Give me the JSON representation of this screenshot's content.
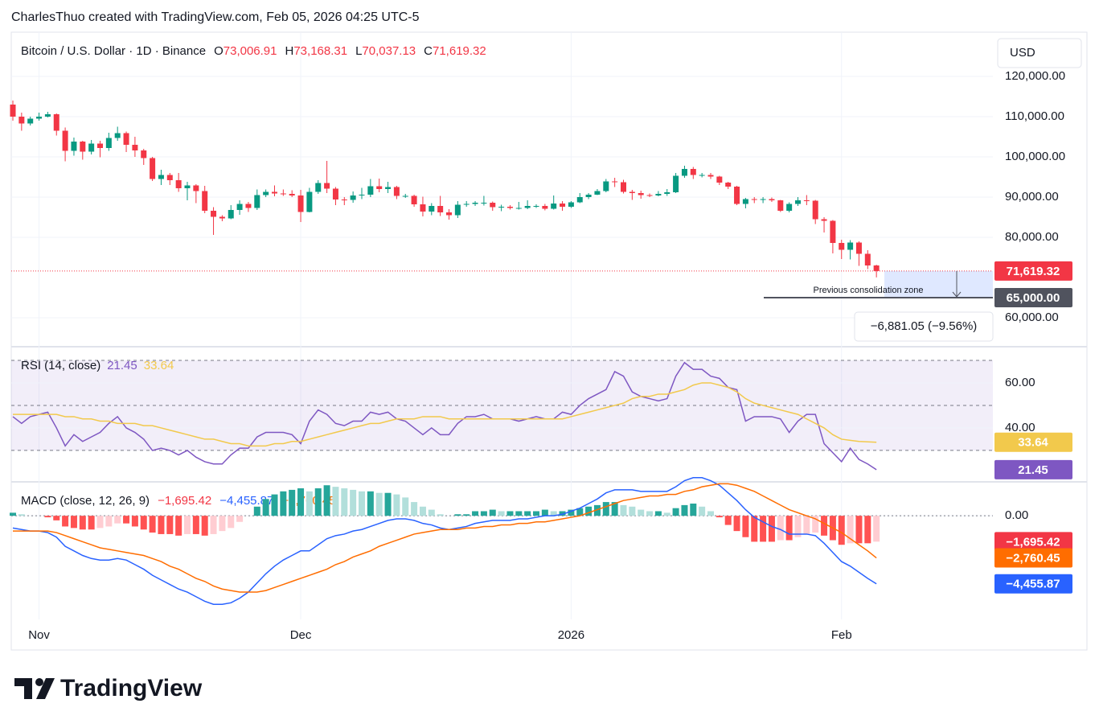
{
  "header": {
    "attribution": "CharlesThuo created with TradingView.com, Feb 05, 2026 04:25 UTC-5"
  },
  "currency_button": "USD",
  "footer": {
    "logo": "TradingView"
  },
  "chart_data": [
    {
      "type": "candlestick",
      "title": "Bitcoin / U.S. Dollar · 1D · Binance",
      "legend": [
        {
          "key": "O",
          "value": "73,006.91"
        },
        {
          "key": "H",
          "value": "73,168.31"
        },
        {
          "key": "L",
          "value": "70,037.13"
        },
        {
          "key": "C",
          "value": "71,619.32"
        }
      ],
      "up_color": "#089981",
      "down_color": "#f23645",
      "open": [
        113000,
        110000,
        108300,
        109500,
        110000,
        110600,
        106500,
        101500,
        103800,
        101300,
        103300,
        102200,
        104700,
        105900,
        103000,
        101600,
        99700,
        94500,
        95500,
        94200,
        92200,
        92900,
        91500,
        86600,
        85100,
        84700,
        86800,
        88300,
        87300,
        90500,
        91300,
        90900,
        90800,
        90400,
        86300,
        91300,
        93500,
        92100,
        89400,
        89300,
        90400,
        90600,
        92700,
        92000,
        92500,
        90300,
        90300,
        88200,
        86400,
        87800,
        86200,
        85500,
        88100,
        88300,
        88600,
        88600,
        87500,
        87600,
        87300,
        87300,
        87800,
        87800,
        87100,
        88400,
        87600,
        88700,
        90000,
        90600,
        91500,
        93900,
        93700,
        91300,
        91000,
        90500,
        90400,
        90800,
        91200,
        95300,
        97000,
        95500,
        95500,
        95100,
        93600,
        92600,
        88300,
        89500,
        89400,
        89500,
        89200,
        86600,
        88300,
        89200,
        89100,
        84500,
        84100,
        78600,
        76900,
        78700,
        75900,
        73006.91
      ],
      "high": [
        114000,
        111000,
        110000,
        111000,
        111200,
        110800,
        107300,
        104800,
        104000,
        104200,
        104000,
        106000,
        107500,
        106300,
        105000,
        102000,
        100000,
        96800,
        96000,
        96000,
        93800,
        93200,
        92800,
        87500,
        85500,
        88000,
        89200,
        88800,
        91900,
        91900,
        92900,
        91900,
        91700,
        91800,
        92300,
        94200,
        99000,
        92500,
        90000,
        91400,
        92300,
        94500,
        94600,
        93800,
        92800,
        90800,
        90600,
        90100,
        88500,
        90300,
        87000,
        89000,
        89000,
        89000,
        90300,
        88900,
        88100,
        88000,
        88800,
        89200,
        88200,
        88300,
        90400,
        89000,
        89000,
        91000,
        91000,
        92000,
        94500,
        94800,
        94300,
        91800,
        91600,
        90900,
        91500,
        92000,
        96000,
        97800,
        97500,
        96000,
        96000,
        95300,
        93800,
        92800,
        89800,
        90000,
        90000,
        89900,
        89300,
        88700,
        90000,
        90500,
        89300,
        85000,
        84300,
        79400,
        79300,
        79000,
        76800,
        73168.31
      ],
      "low": [
        109000,
        106500,
        107800,
        109000,
        109800,
        105300,
        98900,
        100300,
        99300,
        100600,
        99900,
        101500,
        104000,
        101200,
        100000,
        98000,
        94000,
        93000,
        93000,
        91300,
        89200,
        88500,
        86000,
        80600,
        84000,
        84500,
        85600,
        86300,
        86800,
        90000,
        90200,
        90300,
        90000,
        83800,
        86200,
        90800,
        91000,
        88000,
        88000,
        88600,
        89500,
        90000,
        91200,
        91000,
        89500,
        89800,
        87600,
        85200,
        85500,
        85300,
        84400,
        84800,
        87600,
        87800,
        87900,
        86600,
        86500,
        86900,
        86900,
        87000,
        87300,
        86700,
        86900,
        86600,
        87300,
        88500,
        89500,
        90500,
        91200,
        92500,
        90900,
        89300,
        89600,
        90000,
        90200,
        90300,
        91000,
        94800,
        94500,
        94900,
        94500,
        93000,
        92000,
        88000,
        87200,
        88500,
        88500,
        88800,
        86300,
        86200,
        87800,
        88000,
        83300,
        81200,
        76000,
        74600,
        74500,
        72900,
        72100,
        70037.13
      ],
      "close": [
        110000,
        108300,
        109500,
        110000,
        110600,
        106500,
        101500,
        103800,
        101300,
        103300,
        102200,
        104700,
        105900,
        103000,
        101600,
        99700,
        94500,
        95500,
        94200,
        92200,
        92900,
        91500,
        86600,
        85100,
        84700,
        86800,
        88300,
        87300,
        90500,
        91300,
        90900,
        90800,
        90400,
        86300,
        91300,
        93500,
        92100,
        89400,
        89300,
        90400,
        90600,
        92700,
        92000,
        92500,
        90300,
        90300,
        88200,
        86400,
        87800,
        86200,
        85500,
        88100,
        88300,
        88600,
        88600,
        87500,
        87600,
        87300,
        87300,
        87800,
        87800,
        87100,
        88400,
        87600,
        88700,
        90000,
        90600,
        91500,
        93900,
        93700,
        91300,
        91000,
        90500,
        90400,
        90800,
        91200,
        95300,
        97000,
        95500,
        95500,
        95100,
        93600,
        92600,
        88300,
        89500,
        89400,
        89500,
        89200,
        86600,
        88300,
        89200,
        89100,
        84500,
        84100,
        78600,
        76900,
        78700,
        75900,
        73000,
        71619.32
      ],
      "last_price_label": "71,619.32",
      "xticks": [
        {
          "value": 3,
          "label": "Nov"
        },
        {
          "value": 33,
          "label": "Dec"
        },
        {
          "value": 64,
          "label": "2026"
        },
        {
          "value": 95,
          "label": "Feb"
        }
      ],
      "ylim": [
        53000,
        131000
      ],
      "yticks": [
        {
          "value": 60000,
          "label": "60,000.00"
        },
        {
          "value": 80000,
          "label": "80,000.00"
        },
        {
          "value": 90000,
          "label": "90,000.00"
        },
        {
          "value": 100000,
          "label": "100,000.00"
        },
        {
          "value": 110000,
          "label": "110,000.00"
        },
        {
          "value": 120000,
          "label": "120,000.00"
        }
      ],
      "grid": true,
      "zone": {
        "label": "Previous consolidation zone",
        "level": 65000,
        "level_label": "65,000.00",
        "color": "#2962ff"
      },
      "measure_label": "−6,881.05 (−9.56%)"
    },
    {
      "type": "line",
      "title": "RSI (14, close)",
      "series": [
        {
          "color": "#7e57c2",
          "value_label": "21.45",
          "values": [
            45,
            42,
            45,
            46,
            47,
            40,
            32,
            37,
            34,
            36,
            38,
            42,
            45,
            40,
            38,
            35,
            30,
            31,
            30,
            28,
            30,
            27,
            25,
            24,
            24,
            28,
            31,
            31,
            36,
            38,
            38,
            38,
            37,
            33,
            43,
            48,
            46,
            42,
            41,
            43,
            43,
            47,
            46,
            47,
            44,
            43,
            40,
            37,
            40,
            37,
            37,
            42,
            45,
            45,
            46,
            44,
            44,
            44,
            43,
            44,
            45,
            44,
            44,
            47,
            46,
            50,
            53,
            55,
            57,
            65,
            63,
            56,
            54,
            53,
            52,
            53,
            63,
            69,
            66,
            66,
            63,
            62,
            58,
            57,
            43,
            45,
            45,
            45,
            44,
            38,
            43,
            46,
            46,
            33,
            29,
            25,
            31,
            26,
            24,
            21.45
          ]
        },
        {
          "color": "#f2c94c",
          "value_label": "33.64",
          "values": [
            46,
            46,
            46,
            46,
            46,
            46,
            45,
            45,
            44,
            44,
            43,
            43,
            42,
            42,
            42,
            41,
            41,
            40,
            39,
            38,
            37,
            36,
            35,
            35,
            34,
            33,
            33,
            32,
            32,
            32,
            33,
            33,
            34,
            34,
            35,
            36,
            37,
            38,
            39,
            40,
            41,
            42,
            42,
            43,
            44,
            44,
            44,
            45,
            45,
            45,
            44,
            44,
            44,
            44,
            44,
            44,
            44,
            44,
            44,
            44,
            44,
            44,
            44,
            44,
            45,
            46,
            47,
            48,
            49,
            50,
            51,
            53,
            54,
            54,
            55,
            55,
            56,
            57,
            59,
            60,
            60,
            59,
            58,
            56,
            53,
            51,
            50,
            49,
            48,
            47,
            46,
            44,
            42,
            40,
            37,
            35,
            34.5,
            34,
            33.8,
            33.64
          ]
        }
      ],
      "band_lines": [
        70,
        50,
        30
      ],
      "band_color": "#7e57c2",
      "ylim": [
        16.4,
        75.7
      ],
      "yticks": [
        {
          "value": 40,
          "label": "40.00"
        },
        {
          "value": 60,
          "label": "60.00"
        }
      ]
    },
    {
      "type": "macd",
      "title": "MACD (close, 12, 26, 9)",
      "series": [
        {
          "style": "histogram",
          "color": "#f23645",
          "colors": [
            "#26a69a",
            "#b2dfdb",
            "#ffcdd2",
            "#ff5252"
          ],
          "value_label": "−1,695.42",
          "values": [
            200,
            100,
            0,
            0,
            -100,
            -300,
            -700,
            -800,
            -900,
            -900,
            -800,
            -700,
            -500,
            -500,
            -700,
            -900,
            -1100,
            -1200,
            -1200,
            -1300,
            -1200,
            -1200,
            -1300,
            -1200,
            -1000,
            -800,
            -400,
            0,
            600,
            1100,
            1400,
            1600,
            1700,
            1800,
            1600,
            1800,
            2000,
            1900,
            1800,
            1700,
            1600,
            1600,
            1500,
            1500,
            1400,
            1200,
            900,
            600,
            400,
            100,
            0,
            100,
            100,
            300,
            300,
            400,
            300,
            300,
            300,
            300,
            300,
            400,
            300,
            300,
            400,
            500,
            600,
            700,
            900,
            900,
            700,
            600,
            400,
            300,
            300,
            200,
            500,
            700,
            800,
            600,
            300,
            -100,
            -600,
            -1000,
            -1400,
            -1700,
            -1700,
            -1700,
            -1600,
            -1600,
            -1400,
            -1200,
            -1100,
            -1300,
            -1600,
            -1900,
            -1800,
            -1800,
            -1800,
            -1695.42
          ]
        },
        {
          "style": "line",
          "color": "#2962ff",
          "value_label": "−4,455.87",
          "values": [
            -800,
            -900,
            -1000,
            -1000,
            -1100,
            -1400,
            -2000,
            -2300,
            -2600,
            -2800,
            -2900,
            -2900,
            -2800,
            -2900,
            -3200,
            -3500,
            -3900,
            -4200,
            -4500,
            -4800,
            -5000,
            -5300,
            -5600,
            -5800,
            -5800,
            -5700,
            -5400,
            -5000,
            -4400,
            -3800,
            -3300,
            -2900,
            -2600,
            -2300,
            -2300,
            -1900,
            -1500,
            -1300,
            -1200,
            -1000,
            -900,
            -700,
            -500,
            -300,
            -200,
            -200,
            -300,
            -500,
            -600,
            -800,
            -900,
            -800,
            -700,
            -500,
            -400,
            -300,
            -300,
            -300,
            -200,
            -200,
            -100,
            0,
            0,
            100,
            300,
            500,
            800,
            1100,
            1500,
            1700,
            1700,
            1700,
            1600,
            1600,
            1600,
            1600,
            1900,
            2300,
            2500,
            2500,
            2300,
            2000,
            1500,
            1000,
            400,
            -100,
            -400,
            -700,
            -900,
            -1200,
            -1200,
            -1200,
            -1300,
            -1800,
            -2400,
            -3000,
            -3300,
            -3700,
            -4100,
            -4455.87
          ]
        },
        {
          "style": "line",
          "color": "#ff6d00",
          "value_label": "−2,760.45",
          "values": [
            -1000,
            -1000,
            -1000,
            -1000,
            -1000,
            -1100,
            -1300,
            -1500,
            -1700,
            -1900,
            -2100,
            -2200,
            -2300,
            -2400,
            -2500,
            -2600,
            -2800,
            -3000,
            -3300,
            -3500,
            -3800,
            -4100,
            -4300,
            -4600,
            -4800,
            -4900,
            -5000,
            -5000,
            -5000,
            -4900,
            -4700,
            -4500,
            -4300,
            -4100,
            -3900,
            -3700,
            -3500,
            -3200,
            -3000,
            -2700,
            -2500,
            -2300,
            -2000,
            -1800,
            -1600,
            -1400,
            -1200,
            -1100,
            -1000,
            -900,
            -900,
            -900,
            -800,
            -800,
            -700,
            -700,
            -600,
            -600,
            -500,
            -500,
            -400,
            -400,
            -300,
            -200,
            -100,
            0,
            200,
            400,
            600,
            800,
            1000,
            1100,
            1200,
            1300,
            1300,
            1400,
            1400,
            1600,
            1700,
            1900,
            2000,
            2100,
            2100,
            2000,
            1800,
            1600,
            1300,
            1000,
            700,
            400,
            200,
            0,
            -200,
            -500,
            -800,
            -1100,
            -1500,
            -1900,
            -2300,
            -2760.45
          ]
        }
      ],
      "ylim": [
        -6790,
        2170
      ],
      "yticks": [
        {
          "value": 0,
          "label": "0.00"
        }
      ]
    }
  ]
}
